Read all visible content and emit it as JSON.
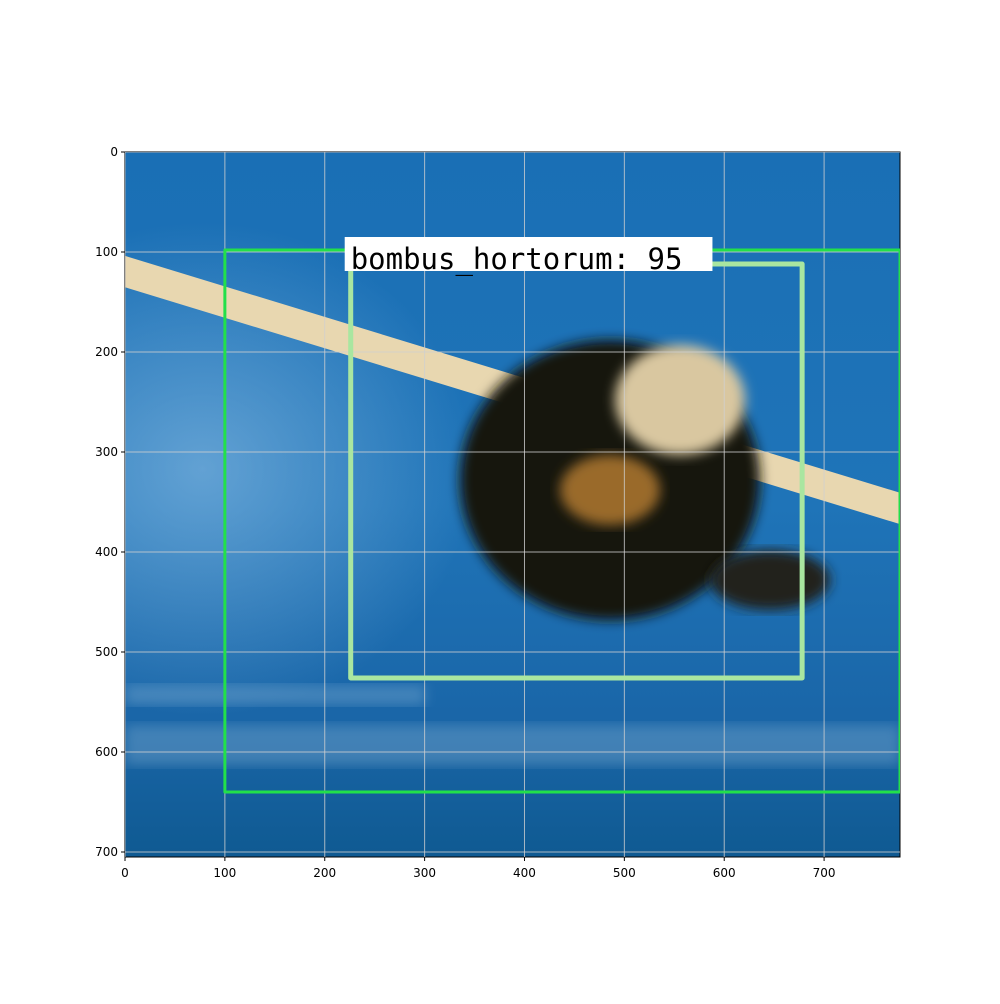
{
  "chart_data": {
    "type": "image",
    "xlim": [
      0,
      776
    ],
    "ylim": [
      705,
      0
    ],
    "xticks": [
      0,
      100,
      200,
      300,
      400,
      500,
      600,
      700
    ],
    "yticks": [
      0,
      100,
      200,
      300,
      400,
      500,
      600,
      700
    ],
    "grid": true,
    "boxes": [
      {
        "x0": 100,
        "y0": 98,
        "x1": 776,
        "y1": 640,
        "color": "#22e04a"
      },
      {
        "x0": 226,
        "y0": 112,
        "x1": 678,
        "y1": 526,
        "color": "#a9e6a0",
        "label": "bombus_hortorum: 95"
      }
    ]
  }
}
